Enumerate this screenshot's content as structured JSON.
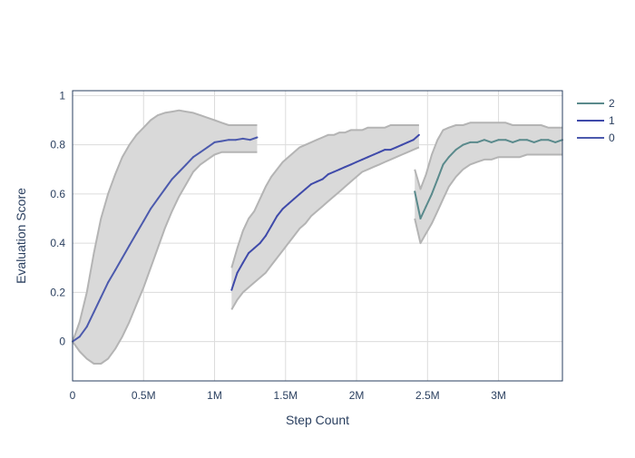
{
  "chart_data": {
    "type": "line",
    "xlabel": "Step Count",
    "ylabel": "Evaluation Score",
    "xlim": [
      0,
      3450000
    ],
    "ylim": [
      -0.16,
      1.02
    ],
    "x_ticks": [
      {
        "value": 0,
        "label": "0"
      },
      {
        "value": 500000,
        "label": "0.5M"
      },
      {
        "value": 1000000,
        "label": "1M"
      },
      {
        "value": 1500000,
        "label": "1.5M"
      },
      {
        "value": 2000000,
        "label": "2M"
      },
      {
        "value": 2500000,
        "label": "2.5M"
      },
      {
        "value": 3000000,
        "label": "3M"
      }
    ],
    "y_ticks": [
      {
        "value": 0,
        "label": "0"
      },
      {
        "value": 0.2,
        "label": "0.2"
      },
      {
        "value": 0.4,
        "label": "0.4"
      },
      {
        "value": 0.6,
        "label": "0.6"
      },
      {
        "value": 0.8,
        "label": "0.8"
      },
      {
        "value": 1,
        "label": "1"
      }
    ],
    "grid": true,
    "legend_position": "top-right",
    "band_color": "#d9d9d9",
    "band_edge_color": "#b4b4b4",
    "series": [
      {
        "name": "0",
        "color": "#4c5aad",
        "x": [
          0,
          50000,
          100000,
          150000,
          200000,
          250000,
          300000,
          350000,
          400000,
          450000,
          500000,
          550000,
          600000,
          650000,
          700000,
          750000,
          800000,
          850000,
          900000,
          950000,
          1000000,
          1050000,
          1100000,
          1150000,
          1200000,
          1250000,
          1300000
        ],
        "y": [
          0.0,
          0.02,
          0.06,
          0.12,
          0.18,
          0.24,
          0.29,
          0.34,
          0.39,
          0.44,
          0.49,
          0.54,
          0.58,
          0.62,
          0.66,
          0.69,
          0.72,
          0.75,
          0.77,
          0.79,
          0.81,
          0.815,
          0.82,
          0.82,
          0.825,
          0.82,
          0.83
        ],
        "upper": [
          0.0,
          0.08,
          0.2,
          0.36,
          0.5,
          0.6,
          0.68,
          0.75,
          0.8,
          0.84,
          0.87,
          0.9,
          0.92,
          0.93,
          0.935,
          0.94,
          0.935,
          0.93,
          0.92,
          0.91,
          0.9,
          0.89,
          0.88,
          0.88,
          0.88,
          0.88,
          0.88
        ],
        "lower": [
          0.0,
          -0.04,
          -0.07,
          -0.09,
          -0.09,
          -0.07,
          -0.03,
          0.02,
          0.08,
          0.15,
          0.22,
          0.3,
          0.38,
          0.46,
          0.53,
          0.59,
          0.64,
          0.69,
          0.72,
          0.74,
          0.76,
          0.77,
          0.77,
          0.77,
          0.77,
          0.77,
          0.77
        ]
      },
      {
        "name": "1",
        "color": "#3f4aaa",
        "x": [
          1120000,
          1160000,
          1200000,
          1240000,
          1280000,
          1320000,
          1360000,
          1400000,
          1440000,
          1480000,
          1520000,
          1560000,
          1600000,
          1640000,
          1680000,
          1720000,
          1760000,
          1800000,
          1840000,
          1880000,
          1920000,
          1960000,
          2000000,
          2040000,
          2080000,
          2120000,
          2160000,
          2200000,
          2240000,
          2280000,
          2320000,
          2360000,
          2400000,
          2440000
        ],
        "y": [
          0.21,
          0.28,
          0.32,
          0.36,
          0.38,
          0.4,
          0.43,
          0.47,
          0.51,
          0.54,
          0.56,
          0.58,
          0.6,
          0.62,
          0.64,
          0.65,
          0.66,
          0.68,
          0.69,
          0.7,
          0.71,
          0.72,
          0.73,
          0.74,
          0.75,
          0.76,
          0.77,
          0.78,
          0.78,
          0.79,
          0.8,
          0.81,
          0.82,
          0.84
        ],
        "upper": [
          0.3,
          0.38,
          0.45,
          0.5,
          0.53,
          0.58,
          0.63,
          0.67,
          0.7,
          0.73,
          0.75,
          0.77,
          0.79,
          0.8,
          0.81,
          0.82,
          0.83,
          0.84,
          0.84,
          0.85,
          0.85,
          0.86,
          0.86,
          0.86,
          0.87,
          0.87,
          0.87,
          0.87,
          0.88,
          0.88,
          0.88,
          0.88,
          0.88,
          0.88
        ],
        "lower": [
          0.13,
          0.17,
          0.2,
          0.22,
          0.24,
          0.26,
          0.28,
          0.31,
          0.34,
          0.37,
          0.4,
          0.43,
          0.46,
          0.48,
          0.51,
          0.53,
          0.55,
          0.57,
          0.59,
          0.61,
          0.63,
          0.65,
          0.67,
          0.69,
          0.7,
          0.71,
          0.72,
          0.73,
          0.74,
          0.75,
          0.76,
          0.77,
          0.78,
          0.79
        ]
      },
      {
        "name": "2",
        "color": "#5a8a8c",
        "x": [
          2410000,
          2450000,
          2490000,
          2530000,
          2570000,
          2610000,
          2650000,
          2700000,
          2750000,
          2800000,
          2850000,
          2900000,
          2950000,
          3000000,
          3050000,
          3100000,
          3150000,
          3200000,
          3250000,
          3300000,
          3350000,
          3400000,
          3450000
        ],
        "y": [
          0.61,
          0.5,
          0.55,
          0.6,
          0.66,
          0.72,
          0.75,
          0.78,
          0.8,
          0.81,
          0.81,
          0.82,
          0.81,
          0.82,
          0.82,
          0.81,
          0.82,
          0.82,
          0.81,
          0.82,
          0.82,
          0.81,
          0.82
        ],
        "upper": [
          0.7,
          0.62,
          0.68,
          0.76,
          0.82,
          0.86,
          0.87,
          0.88,
          0.88,
          0.89,
          0.89,
          0.89,
          0.89,
          0.89,
          0.89,
          0.88,
          0.88,
          0.88,
          0.88,
          0.88,
          0.87,
          0.87,
          0.87
        ],
        "lower": [
          0.5,
          0.4,
          0.44,
          0.48,
          0.53,
          0.58,
          0.63,
          0.67,
          0.7,
          0.72,
          0.73,
          0.74,
          0.74,
          0.75,
          0.75,
          0.75,
          0.75,
          0.76,
          0.76,
          0.76,
          0.76,
          0.76,
          0.76
        ]
      }
    ]
  }
}
